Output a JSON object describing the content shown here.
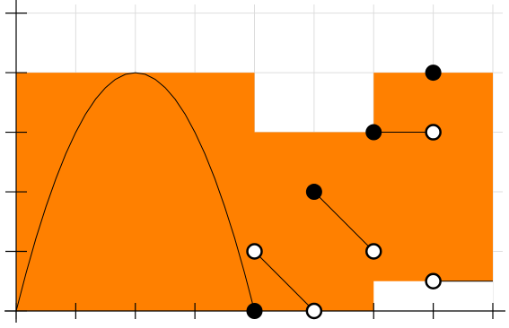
{
  "chart_data": {
    "type": "area",
    "xlim": [
      0,
      8
    ],
    "ylim": [
      0,
      5
    ],
    "grid": true,
    "colors": {
      "fill": "#ff8000",
      "grid": "#dddddd",
      "axis": "#000000",
      "curve": "#000000",
      "point_filled": "#000000",
      "point_open_fill": "#ffffff",
      "point_open_stroke": "#000000"
    },
    "step_area": [
      {
        "x0": 0,
        "x1": 4,
        "y": 4
      },
      {
        "x0": 4,
        "x1": 6,
        "y": 3
      },
      {
        "x0": 6,
        "x1": 8,
        "y": 4
      }
    ],
    "white_cutout": {
      "x0": 6,
      "x1": 8,
      "y0": 0,
      "y1": 0.5
    },
    "parabola": {
      "x0": 0,
      "x1": 4,
      "vertex_x": 2,
      "vertex_y": 4
    },
    "segments": [
      {
        "from": [
          4,
          1
        ],
        "to": [
          5,
          0
        ]
      },
      {
        "from": [
          5,
          2
        ],
        "to": [
          6,
          1
        ]
      },
      {
        "from": [
          6,
          3
        ],
        "to": [
          7,
          3
        ]
      },
      {
        "from": [
          7,
          0.5
        ],
        "to": [
          8,
          0.5
        ]
      }
    ],
    "filled_points": [
      [
        4,
        0
      ],
      [
        5,
        2
      ],
      [
        6,
        3
      ],
      [
        7,
        4
      ]
    ],
    "open_points": [
      [
        4,
        1
      ],
      [
        5,
        0
      ],
      [
        6,
        1
      ],
      [
        7,
        3
      ],
      [
        7,
        0.5
      ]
    ]
  }
}
